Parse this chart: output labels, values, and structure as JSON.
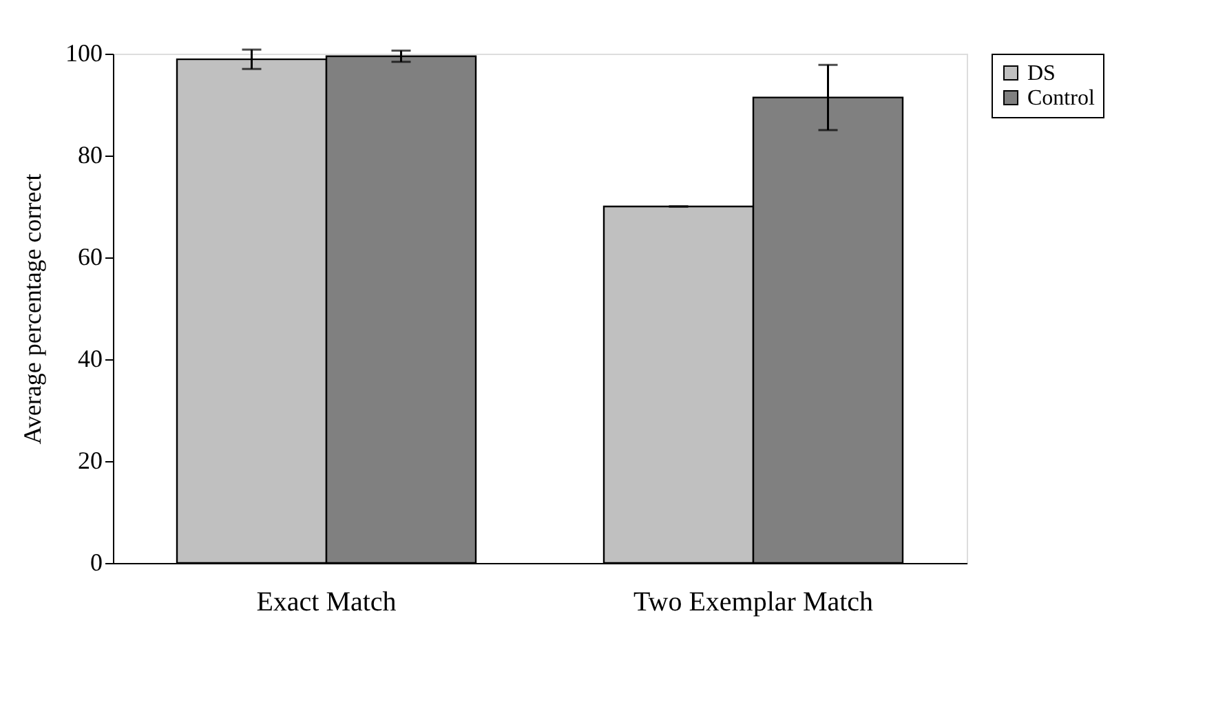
{
  "chart_data": {
    "type": "bar",
    "ylabel": "Average percentage correct",
    "categories": [
      "Exact Match",
      "Two Exemplar Match"
    ],
    "series": [
      {
        "name": "DS",
        "color": "#c0c0c0",
        "values": [
          98.9,
          70.0
        ],
        "errors": [
          1.9,
          0
        ]
      },
      {
        "name": "Control",
        "color": "#808080",
        "values": [
          99.5,
          91.4
        ],
        "errors": [
          1.1,
          6.4
        ]
      }
    ],
    "ylim": [
      0,
      100
    ],
    "yticks": [
      0,
      20,
      40,
      60,
      80,
      100
    ],
    "grid": false,
    "legend": "right"
  }
}
